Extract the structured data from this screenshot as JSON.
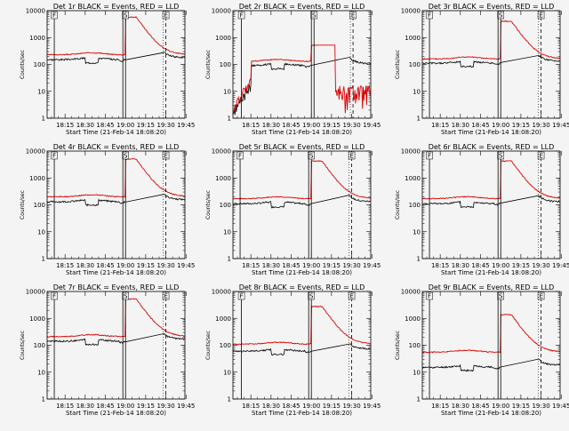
{
  "chart_data": {
    "type": "line",
    "suptitle": "BLACK = Events, RED = LLD",
    "xlabel": "Start Time (21-Feb-14 18:08:20)",
    "ylabel": "Counts/sec",
    "x_range_minutes": [
      -58.33,
      44.17
    ],
    "x_ticks": [
      {
        "label": "18:15",
        "minute": -45
      },
      {
        "label": "18:30",
        "minute": -30
      },
      {
        "label": "18:45",
        "minute": -15
      },
      {
        "label": "19:00",
        "minute": 0
      },
      {
        "label": "19:15",
        "minute": 15
      },
      {
        "label": "19:30",
        "minute": 30
      },
      {
        "label": "19:45",
        "minute": 45
      }
    ],
    "y_scale": "log",
    "y_range": [
      1,
      10000
    ],
    "y_ticks": [
      "1",
      "10",
      "100",
      "1000",
      "10000"
    ],
    "marker_codes": [
      "F",
      "S",
      "E"
    ],
    "colors": {
      "events": "#000000",
      "lld": "#dd0000",
      "background": "#f4f4f4"
    },
    "panels": [
      {
        "title": "Det 1r",
        "events_level": 150,
        "lld_level": 230,
        "markers": {
          "F_minute": -53,
          "S_minute": 0,
          "E_minute": 30
        }
      },
      {
        "title": "Det 2r",
        "events_level": 90,
        "lld_level": 130,
        "markers": {
          "F_minute": -52,
          "S_minute": 2,
          "E_minute": 31
        }
      },
      {
        "title": "Det 3r",
        "events_level": 110,
        "lld_level": 160,
        "markers": {
          "F_minute": -53,
          "S_minute": 0,
          "E_minute": 30
        }
      },
      {
        "title": "Det 4r",
        "events_level": 130,
        "lld_level": 200,
        "markers": {
          "F_minute": -53,
          "S_minute": 0,
          "E_minute": 30
        }
      },
      {
        "title": "Det 5r",
        "events_level": 110,
        "lld_level": 170,
        "markers": {
          "F_minute": -53,
          "S_minute": 0,
          "E_minute": 30
        }
      },
      {
        "title": "Det 6r",
        "events_level": 110,
        "lld_level": 170,
        "markers": {
          "F_minute": -53,
          "S_minute": 0,
          "E_minute": 30
        }
      },
      {
        "title": "Det 7r",
        "events_level": 140,
        "lld_level": 210,
        "markers": {
          "F_minute": -53,
          "S_minute": 0,
          "E_minute": 30
        }
      },
      {
        "title": "Det 8r",
        "events_level": 60,
        "lld_level": 110,
        "markers": {
          "F_minute": -52,
          "S_minute": 0,
          "E_minute": 30
        }
      },
      {
        "title": "Det 9r",
        "events_level": 15,
        "lld_level": 55,
        "markers": {
          "F_minute": -53,
          "S_minute": 0,
          "E_minute": 30
        }
      }
    ]
  }
}
